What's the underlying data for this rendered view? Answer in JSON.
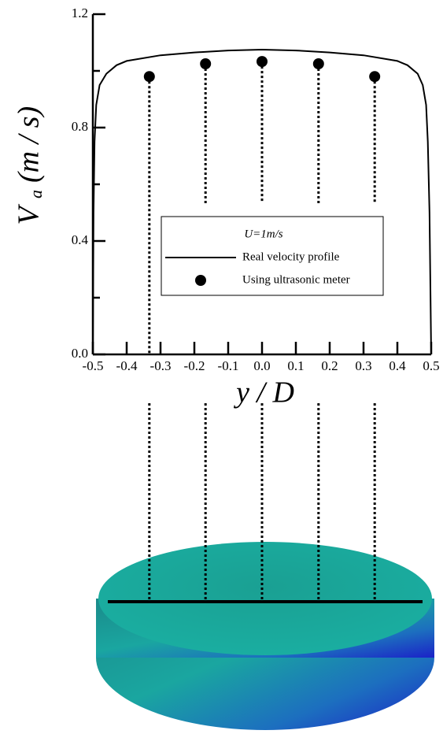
{
  "chart_data": {
    "type": "line",
    "xlabel": "y / D",
    "ylabel": "V",
    "ylabel_sub": "a",
    "ylabel_unit": "(m / s)",
    "legend_title": "U=1m/s",
    "xlim": [
      -0.5,
      0.5
    ],
    "ylim": [
      0,
      1.2
    ],
    "xticks": [
      -0.5,
      -0.4,
      -0.3,
      -0.2,
      -0.1,
      {
        "value": 0,
        "label": "0.0"
      },
      0.1,
      0.2,
      0.3,
      0.4,
      0.5
    ],
    "yticks": [
      {
        "value": 0,
        "label": "0.0"
      },
      0.4,
      0.8,
      1.2
    ],
    "yminor": [
      0.2,
      0.6,
      1.0
    ],
    "series": [
      {
        "name": "Real velocity profile",
        "type": "line",
        "color": "#000000",
        "x": [
          -0.5,
          -0.498,
          -0.495,
          -0.49,
          -0.48,
          -0.46,
          -0.43,
          -0.4,
          -0.3,
          -0.2,
          -0.1,
          0,
          0.1,
          0.2,
          0.3,
          0.4,
          0.43,
          0.46,
          0.475,
          0.485,
          0.49,
          0.495,
          0.498,
          0.5
        ],
        "values": [
          0,
          0.5,
          0.75,
          0.88,
          0.95,
          0.99,
          1.02,
          1.035,
          1.055,
          1.065,
          1.072,
          1.075,
          1.072,
          1.065,
          1.055,
          1.035,
          1.02,
          0.99,
          0.95,
          0.88,
          0.75,
          0.5,
          0.2,
          0
        ]
      },
      {
        "name": "Using ultrasonic meter",
        "type": "scatter",
        "color": "#000000",
        "x": [
          -0.333,
          -0.167,
          0,
          0.167,
          0.333
        ],
        "values": [
          0.98,
          1.025,
          1.033,
          1.025,
          0.98
        ]
      }
    ]
  }
}
